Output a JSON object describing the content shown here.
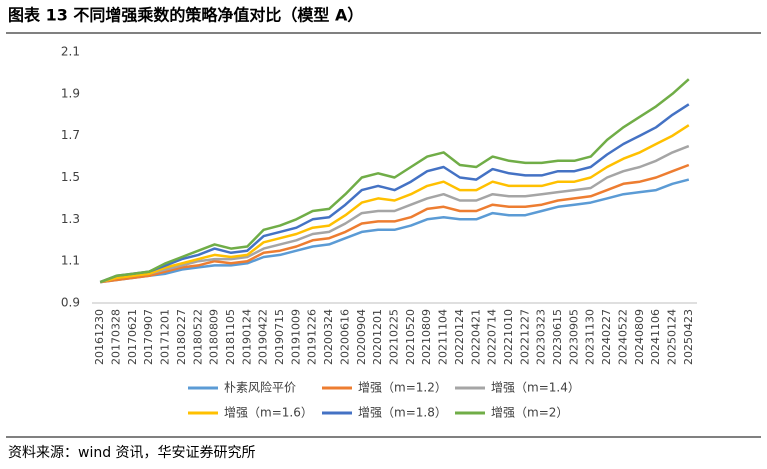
{
  "title": "图表 13  不同增强乘数的策略净值对比（模型 A）",
  "source": "资料来源：wind 资讯，华安证券研究所",
  "chart_data": {
    "type": "line",
    "categories": [
      "20161230",
      "20170328",
      "20170621",
      "20170907",
      "20171201",
      "20180227",
      "20180522",
      "20180809",
      "20181105",
      "20190124",
      "20190422",
      "20190715",
      "20191009",
      "20191226",
      "20200324",
      "20200616",
      "20200904",
      "20201201",
      "20210225",
      "20210520",
      "20210809",
      "20211104",
      "20220124",
      "20220421",
      "20220714",
      "20221010",
      "20221227",
      "20230323",
      "20230615",
      "20230905",
      "20231130",
      "20240227",
      "20240522",
      "20240809",
      "20241106",
      "20250124",
      "20250423"
    ],
    "series": [
      {
        "name": "朴素风险平价",
        "color": "#5b9bd5",
        "values": [
          1.0,
          1.01,
          1.02,
          1.03,
          1.04,
          1.06,
          1.07,
          1.08,
          1.08,
          1.09,
          1.12,
          1.13,
          1.15,
          1.17,
          1.18,
          1.21,
          1.24,
          1.25,
          1.25,
          1.27,
          1.3,
          1.31,
          1.3,
          1.3,
          1.33,
          1.32,
          1.32,
          1.34,
          1.36,
          1.37,
          1.38,
          1.4,
          1.42,
          1.43,
          1.44,
          1.47,
          1.49
        ]
      },
      {
        "name": "增强（m=1.2）",
        "color": "#ed7d31",
        "values": [
          1.0,
          1.01,
          1.02,
          1.03,
          1.05,
          1.07,
          1.08,
          1.1,
          1.09,
          1.1,
          1.14,
          1.15,
          1.17,
          1.2,
          1.21,
          1.24,
          1.28,
          1.29,
          1.29,
          1.31,
          1.35,
          1.36,
          1.34,
          1.34,
          1.37,
          1.36,
          1.36,
          1.37,
          1.39,
          1.4,
          1.41,
          1.44,
          1.47,
          1.48,
          1.5,
          1.53,
          1.56
        ]
      },
      {
        "name": "增强（m=1.4）",
        "color": "#a5a5a5",
        "values": [
          1.0,
          1.02,
          1.03,
          1.04,
          1.06,
          1.08,
          1.1,
          1.11,
          1.11,
          1.12,
          1.16,
          1.18,
          1.2,
          1.23,
          1.24,
          1.28,
          1.33,
          1.34,
          1.34,
          1.37,
          1.4,
          1.42,
          1.39,
          1.39,
          1.42,
          1.41,
          1.41,
          1.42,
          1.43,
          1.44,
          1.45,
          1.5,
          1.53,
          1.55,
          1.58,
          1.62,
          1.65
        ]
      },
      {
        "name": "增强（m=1.6）",
        "color": "#ffc000",
        "values": [
          1.0,
          1.02,
          1.03,
          1.04,
          1.07,
          1.09,
          1.11,
          1.13,
          1.12,
          1.13,
          1.19,
          1.21,
          1.23,
          1.26,
          1.27,
          1.32,
          1.38,
          1.4,
          1.39,
          1.42,
          1.46,
          1.48,
          1.44,
          1.44,
          1.48,
          1.46,
          1.46,
          1.46,
          1.48,
          1.48,
          1.5,
          1.55,
          1.59,
          1.62,
          1.66,
          1.7,
          1.75
        ]
      },
      {
        "name": "增强（m=1.8）",
        "color": "#4472c4",
        "values": [
          1.0,
          1.03,
          1.04,
          1.05,
          1.08,
          1.11,
          1.13,
          1.16,
          1.14,
          1.15,
          1.22,
          1.24,
          1.26,
          1.3,
          1.31,
          1.37,
          1.44,
          1.46,
          1.44,
          1.48,
          1.53,
          1.55,
          1.5,
          1.49,
          1.54,
          1.52,
          1.51,
          1.51,
          1.53,
          1.53,
          1.55,
          1.61,
          1.66,
          1.7,
          1.74,
          1.8,
          1.85
        ]
      },
      {
        "name": "增强（m=2）",
        "color": "#70ad47",
        "values": [
          1.0,
          1.03,
          1.04,
          1.05,
          1.09,
          1.12,
          1.15,
          1.18,
          1.16,
          1.17,
          1.25,
          1.27,
          1.3,
          1.34,
          1.35,
          1.42,
          1.5,
          1.52,
          1.5,
          1.55,
          1.6,
          1.62,
          1.56,
          1.55,
          1.6,
          1.58,
          1.57,
          1.57,
          1.58,
          1.58,
          1.6,
          1.68,
          1.74,
          1.79,
          1.84,
          1.9,
          1.97
        ]
      }
    ],
    "ylim": [
      0.9,
      2.1
    ],
    "yticks": [
      0.9,
      1.1,
      1.3,
      1.5,
      1.7,
      1.9,
      2.1
    ]
  }
}
